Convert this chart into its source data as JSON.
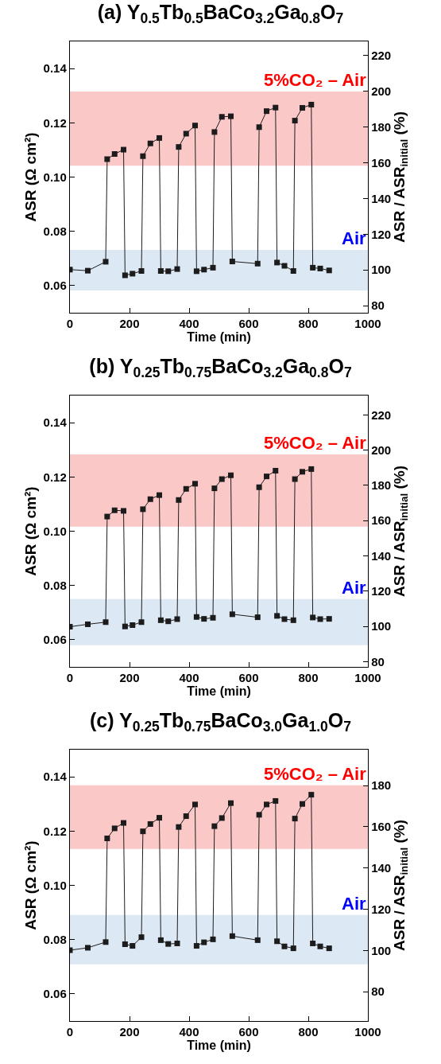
{
  "chart_data": [
    {
      "type": "line",
      "title": "(a) Y$_{0.5}$Tb$_{0.5}$BaCo$_{3.2}$Ga$_{0.8}$O$_{7}$",
      "xlabel": "Time (min)",
      "ylabel": "ASR (Ω cm²)",
      "y2label": "ASR / ASR$_{initial}$ (%)",
      "marker": "square",
      "line_style": "solid",
      "grid": false,
      "xlim": [
        0,
        1000
      ],
      "xticks": [
        0,
        200,
        400,
        600,
        800,
        1000
      ],
      "ylim": [
        0.05,
        0.15
      ],
      "yticks": [
        {
          "value": 0.06,
          "label": "0.06"
        },
        {
          "value": 0.08,
          "label": "0.08"
        },
        {
          "value": 0.1,
          "label": "0.10"
        },
        {
          "value": 0.12,
          "label": "0.12"
        },
        {
          "value": 0.14,
          "label": "0.14"
        }
      ],
      "y2lim": [
        76,
        228
      ],
      "y2ticks": [
        80,
        100,
        120,
        140,
        160,
        180,
        200,
        220
      ],
      "bands": [
        {
          "axis": "y",
          "from": 0.1042,
          "to": 0.1315,
          "label": "5%CO₂ – Air",
          "color": "#fbc8c8"
        },
        {
          "axis": "y",
          "from": 0.0582,
          "to": 0.0732,
          "label": "Air",
          "color": "#dce8f4"
        }
      ],
      "series": [
        {
          "color": "#1c1c1c",
          "x": [
            0,
            60,
            120,
            125,
            150,
            180,
            185,
            210,
            240,
            245,
            270,
            300,
            305,
            330,
            360,
            365,
            390,
            420,
            425,
            450,
            480,
            485,
            510,
            540,
            545,
            630,
            635,
            660,
            690,
            695,
            720,
            750,
            755,
            780,
            810,
            815,
            840,
            870
          ],
          "values": [
            0.0659,
            0.0655,
            0.0688,
            0.1066,
            0.1085,
            0.1101,
            0.0638,
            0.0644,
            0.0654,
            0.1077,
            0.1124,
            0.1144,
            0.0654,
            0.0653,
            0.0661,
            0.1111,
            0.116,
            0.119,
            0.0653,
            0.0659,
            0.0666,
            0.1166,
            0.1222,
            0.1224,
            0.0689,
            0.0681,
            0.1184,
            0.1243,
            0.1256,
            0.0685,
            0.0673,
            0.0654,
            0.1208,
            0.1255,
            0.1267,
            0.0666,
            0.0663,
            0.0656
          ]
        }
      ]
    },
    {
      "type": "line",
      "title": "(b) Y$_{0.25}$Tb$_{0.75}$BaCo$_{3.2}$Ga$_{0.8}$O$_{7}$",
      "xlabel": "Time (min)",
      "ylabel": "ASR (Ω cm²)",
      "y2label": "ASR / ASR$_{initial}$ (%)",
      "marker": "square",
      "line_style": "solid",
      "grid": false,
      "xlim": [
        0,
        1000
      ],
      "xticks": [
        0,
        200,
        400,
        600,
        800,
        1000
      ],
      "ylim": [
        0.05,
        0.15
      ],
      "yticks": [
        {
          "value": 0.06,
          "label": "0.06"
        },
        {
          "value": 0.08,
          "label": "0.08"
        },
        {
          "value": 0.1,
          "label": "0.10"
        },
        {
          "value": 0.12,
          "label": "0.12"
        },
        {
          "value": 0.14,
          "label": "0.14"
        }
      ],
      "y2lim": [
        77,
        231
      ],
      "y2ticks": [
        80,
        100,
        120,
        140,
        160,
        180,
        200,
        220
      ],
      "bands": [
        {
          "axis": "y",
          "from": 0.1017,
          "to": 0.1283,
          "label": "5%CO₂ – Air",
          "color": "#fbc8c8"
        },
        {
          "axis": "y",
          "from": 0.058,
          "to": 0.075,
          "label": "Air",
          "color": "#dce8f4"
        }
      ],
      "series": [
        {
          "color": "#1c1c1c",
          "x": [
            0,
            60,
            120,
            125,
            150,
            180,
            185,
            210,
            240,
            245,
            270,
            300,
            305,
            330,
            360,
            365,
            390,
            420,
            425,
            450,
            480,
            485,
            510,
            540,
            545,
            630,
            635,
            660,
            690,
            695,
            720,
            750,
            755,
            780,
            810,
            815,
            840,
            870
          ],
          "values": [
            0.0648,
            0.0657,
            0.0665,
            0.1054,
            0.1077,
            0.1075,
            0.0649,
            0.0654,
            0.0665,
            0.1081,
            0.1118,
            0.1133,
            0.0672,
            0.0668,
            0.0676,
            0.1115,
            0.1156,
            0.1175,
            0.0684,
            0.0677,
            0.0681,
            0.1158,
            0.1192,
            0.1206,
            0.0694,
            0.0683,
            0.1162,
            0.1202,
            0.1223,
            0.0688,
            0.0676,
            0.0672,
            0.1192,
            0.1219,
            0.1229,
            0.0682,
            0.0676,
            0.0677
          ]
        }
      ]
    },
    {
      "type": "line",
      "title": "(c) Y$_{0.25}$Tb$_{0.75}$BaCo$_{3.0}$Ga$_{1.0}$O$_{7}$",
      "xlabel": "Time (min)",
      "ylabel": "ASR (Ω cm²)",
      "y2label": "ASR / ASR$_{initial}$ (%)",
      "marker": "square",
      "line_style": "solid",
      "grid": false,
      "xlim": [
        0,
        1000
      ],
      "xticks": [
        0,
        200,
        400,
        600,
        800,
        1000
      ],
      "ylim": [
        0.05,
        0.15
      ],
      "yticks": [
        {
          "value": 0.06,
          "label": "0.06"
        },
        {
          "value": 0.08,
          "label": "0.08"
        },
        {
          "value": 0.1,
          "label": "0.10"
        },
        {
          "value": 0.12,
          "label": "0.12"
        },
        {
          "value": 0.14,
          "label": "0.14"
        }
      ],
      "y2lim": [
        65.8,
        197.4
      ],
      "y2ticks": [
        80,
        100,
        120,
        140,
        160,
        180
      ],
      "bands": [
        {
          "axis": "y",
          "from": 0.1134,
          "to": 0.1369,
          "label": "5%CO₂ – Air",
          "color": "#fbc8c8"
        },
        {
          "axis": "y",
          "from": 0.0709,
          "to": 0.0891,
          "label": "Air",
          "color": "#dce8f4"
        }
      ],
      "series": [
        {
          "color": "#1c1c1c",
          "x": [
            0,
            60,
            120,
            125,
            150,
            180,
            185,
            210,
            240,
            245,
            270,
            300,
            305,
            330,
            360,
            365,
            390,
            420,
            425,
            450,
            480,
            485,
            510,
            540,
            545,
            630,
            635,
            660,
            690,
            695,
            720,
            750,
            755,
            780,
            810,
            815,
            840,
            870
          ],
          "values": [
            0.0761,
            0.077,
            0.0791,
            0.1173,
            0.121,
            0.123,
            0.0783,
            0.0777,
            0.0809,
            0.1199,
            0.1226,
            0.1249,
            0.0798,
            0.0784,
            0.0786,
            0.1215,
            0.1255,
            0.1298,
            0.0777,
            0.079,
            0.0801,
            0.1218,
            0.1248,
            0.1303,
            0.0813,
            0.0798,
            0.126,
            0.1298,
            0.1311,
            0.0794,
            0.0775,
            0.0768,
            0.1246,
            0.13,
            0.1334,
            0.0786,
            0.0775,
            0.0768
          ]
        }
      ]
    }
  ]
}
